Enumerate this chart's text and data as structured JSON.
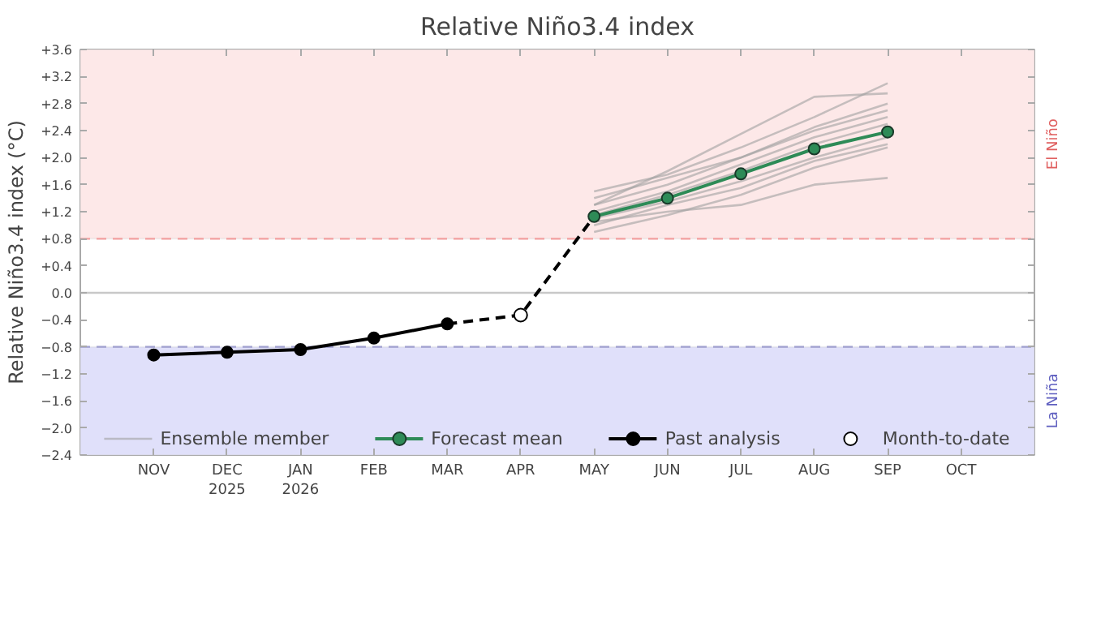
{
  "chart_data": {
    "type": "line",
    "title": "Relative Niño3.4 index",
    "ylabel": "Relative Niño3.4 index (°C)",
    "categories": [
      "NOV",
      "DEC\n2025",
      "JAN\n2026",
      "FEB",
      "MAR",
      "APR",
      "MAY",
      "JUN",
      "JUL",
      "AUG",
      "SEP",
      "OCT"
    ],
    "ylim": [
      -2.4,
      3.6
    ],
    "yticks": [
      {
        "value": -2.4,
        "label": "−2.4"
      },
      {
        "value": -2.0,
        "label": "−2.0"
      },
      {
        "value": -1.6,
        "label": "−1.6"
      },
      {
        "value": -1.2,
        "label": "−1.2"
      },
      {
        "value": -0.8,
        "label": "−0.8"
      },
      {
        "value": -0.4,
        "label": "−0.4"
      },
      {
        "value": 0,
        "label": "0.0"
      },
      {
        "value": 0.4,
        "label": "+0.4"
      },
      {
        "value": 0.8,
        "label": "+0.8"
      },
      {
        "value": 1.2,
        "label": "+1.2"
      },
      {
        "value": 1.6,
        "label": "+1.6"
      },
      {
        "value": 2.0,
        "label": "+2.0"
      },
      {
        "value": 2.4,
        "label": "+2.4"
      },
      {
        "value": 2.8,
        "label": "+2.8"
      },
      {
        "value": 3.2,
        "label": "+3.2"
      },
      {
        "value": 3.6,
        "label": "+3.6"
      }
    ],
    "grid": false,
    "legend": "bottom",
    "bands": [
      {
        "axis": "y",
        "from": 0.8,
        "to": 3.6,
        "label": "El Niño",
        "color": "#fde8e8"
      },
      {
        "axis": "y",
        "from": -2.4,
        "to": -0.8,
        "label": "La Niña",
        "color": "#e0e0fa"
      }
    ],
    "ref_lines": [
      {
        "axis": "y",
        "value": 0.8,
        "color": "#f4a0a0",
        "line_style": "dashed"
      },
      {
        "axis": "y",
        "value": -0.8,
        "color": "#a0a0d0",
        "line_style": "dashed"
      },
      {
        "axis": "y",
        "value": 0,
        "color": "#c8c8c8",
        "line_style": "solid"
      }
    ],
    "series": [
      {
        "name": "Ensemble member",
        "color": "#a0a0a0",
        "marker": "none",
        "line_style": "solid",
        "values": [
          null,
          null,
          null,
          null,
          null,
          null,
          1.5,
          1.75,
          2.15,
          2.6,
          3.1,
          null
        ]
      },
      {
        "color": "#a0a0a0",
        "marker": "none",
        "line_style": "solid",
        "values": [
          null,
          null,
          null,
          null,
          null,
          null,
          0.9,
          1.15,
          1.45,
          1.85,
          2.15,
          null
        ]
      },
      {
        "color": "#a0a0a0",
        "marker": "none",
        "line_style": "solid",
        "values": [
          null,
          null,
          null,
          null,
          null,
          null,
          1.3,
          1.6,
          2.0,
          2.45,
          2.8,
          null
        ]
      },
      {
        "color": "#a0a0a0",
        "marker": "none",
        "line_style": "solid",
        "values": [
          null,
          null,
          null,
          null,
          null,
          null,
          1.0,
          1.3,
          1.55,
          1.95,
          2.2,
          null
        ]
      },
      {
        "color": "#a0a0a0",
        "marker": "none",
        "line_style": "solid",
        "values": [
          null,
          null,
          null,
          null,
          null,
          null,
          1.2,
          1.5,
          1.9,
          2.3,
          2.6,
          null
        ]
      },
      {
        "color": "#a0a0a0",
        "marker": "none",
        "line_style": "solid",
        "values": [
          null,
          null,
          null,
          null,
          null,
          null,
          1.1,
          1.35,
          1.65,
          2.0,
          2.3,
          null
        ]
      },
      {
        "color": "#a0a0a0",
        "marker": "none",
        "line_style": "solid",
        "values": [
          null,
          null,
          null,
          null,
          null,
          null,
          1.05,
          1.2,
          1.3,
          1.6,
          1.7,
          null
        ]
      },
      {
        "color": "#a0a0a0",
        "marker": "none",
        "line_style": "solid",
        "values": [
          null,
          null,
          null,
          null,
          null,
          null,
          1.4,
          1.7,
          2.0,
          2.4,
          2.7,
          null
        ]
      },
      {
        "color": "#a0a0a0",
        "marker": "none",
        "line_style": "solid",
        "values": [
          null,
          null,
          null,
          null,
          null,
          null,
          1.15,
          1.45,
          1.8,
          2.2,
          2.5,
          null
        ]
      },
      {
        "color": "#a0a0a0",
        "marker": "none",
        "line_style": "solid",
        "values": [
          null,
          null,
          null,
          null,
          null,
          null,
          1.3,
          1.8,
          2.35,
          2.9,
          2.95,
          null
        ]
      },
      {
        "color": "#000000",
        "marker": "none",
        "line_style": "dashed",
        "values": [
          null,
          null,
          null,
          null,
          -0.46,
          -0.33,
          1.13,
          null,
          null,
          null,
          null,
          null
        ]
      },
      {
        "name": "Forecast mean",
        "color": "#2e8b57",
        "marker": "circle",
        "line_style": "solid",
        "values": [
          null,
          null,
          null,
          null,
          null,
          null,
          1.13,
          1.4,
          1.76,
          2.13,
          2.38,
          null
        ]
      },
      {
        "name": "Past analysis",
        "color": "#000000",
        "marker": "circle",
        "line_style": "solid",
        "values": [
          -0.92,
          -0.88,
          -0.84,
          -0.67,
          -0.46,
          null,
          null,
          null,
          null,
          null,
          null,
          null
        ]
      },
      {
        "name": "Month-to-date",
        "type": "scatter",
        "color": "#ffffff",
        "marker": "circle",
        "values": [
          null,
          null,
          null,
          null,
          null,
          -0.33,
          null,
          null,
          null,
          null,
          null,
          null
        ]
      }
    ]
  }
}
